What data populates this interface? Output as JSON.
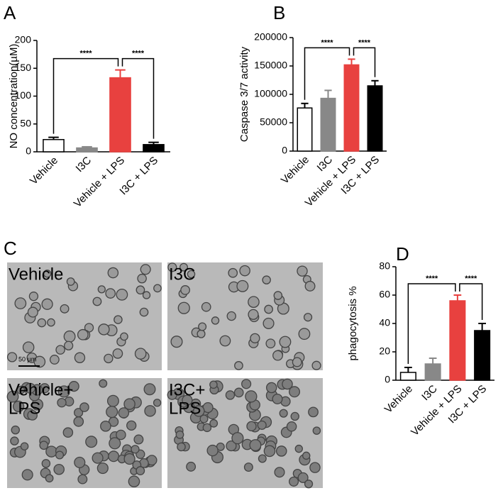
{
  "chart_data": [
    {
      "type": "bar",
      "panel": "A",
      "y_label": "NO concentration(µM)",
      "categories": [
        "Vehicle",
        "I3C",
        "Vehicle + LPS",
        "I3C + LPS"
      ],
      "values": [
        22,
        7,
        133,
        13
      ],
      "errors": [
        4,
        2,
        14,
        4
      ],
      "colors": [
        "#ffffff",
        "#888888",
        "#e8413f",
        "#000000"
      ],
      "edge_color": "#000000",
      "ylim": [
        0,
        200
      ],
      "yticks": [
        0,
        50,
        100,
        150,
        200
      ],
      "comparisons": [
        {
          "label": "****",
          "between": [
            "Vehicle",
            "Vehicle + LPS"
          ]
        },
        {
          "label": "****",
          "between": [
            "Vehicle + LPS",
            "I3C + LPS"
          ]
        }
      ]
    },
    {
      "type": "bar",
      "panel": "B",
      "y_label": "Caspase 3/7 activity",
      "categories": [
        "Vehicle",
        "I3C",
        "Vehicle + LPS",
        "I3C + LPS"
      ],
      "values": [
        76000,
        93000,
        152000,
        115000
      ],
      "errors": [
        8000,
        14000,
        10000,
        9000
      ],
      "colors": [
        "#ffffff",
        "#888888",
        "#e8413f",
        "#000000"
      ],
      "edge_color": "#000000",
      "ylim": [
        0,
        200000
      ],
      "yticks": [
        0,
        50000,
        100000,
        150000,
        200000
      ],
      "comparisons": [
        {
          "label": "****",
          "between": [
            "Vehicle",
            "Vehicle + LPS"
          ]
        },
        {
          "label": "****",
          "between": [
            "Vehicle + LPS",
            "I3C + LPS"
          ]
        }
      ]
    },
    {
      "type": "bar",
      "panel": "D",
      "y_label": "phagocytosis %",
      "categories": [
        "Vehicle",
        "I3C",
        "Vehicle + LPS",
        "I3C + LPS"
      ],
      "values": [
        5.5,
        11.5,
        56,
        35
      ],
      "errors": [
        3.5,
        4,
        4,
        5
      ],
      "colors": [
        "#ffffff",
        "#888888",
        "#e8413f",
        "#000000"
      ],
      "edge_color": "#000000",
      "ylim": [
        0,
        80
      ],
      "yticks": [
        0,
        20,
        40,
        60,
        80
      ],
      "comparisons": [
        {
          "label": "****",
          "between": [
            "Vehicle",
            "Vehicle + LPS"
          ]
        },
        {
          "label": "****",
          "between": [
            "Vehicle + LPS",
            "I3C + LPS"
          ]
        }
      ]
    }
  ],
  "micrographs": {
    "panel": "C",
    "scale_bar": "50 µm",
    "images": [
      {
        "label": [
          "Vehicle"
        ]
      },
      {
        "label": [
          "I3C"
        ]
      },
      {
        "label": [
          "Vehicle+",
          "LPS"
        ]
      },
      {
        "label": [
          "I3C+",
          "LPS"
        ]
      }
    ]
  }
}
